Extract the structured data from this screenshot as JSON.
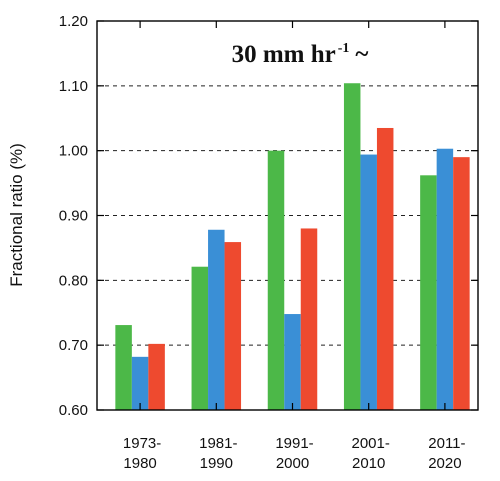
{
  "chart_data": {
    "type": "bar",
    "title": "30 mm hr",
    "title_superscript": "-1",
    "title_suffix": "~",
    "xlabel": "",
    "ylabel": "Fractional ratio (%)",
    "ylim": [
      0.6,
      1.2
    ],
    "yticks": [
      "0.60",
      "0.70",
      "0.80",
      "0.90",
      "1.00",
      "1.10",
      "1.20"
    ],
    "grid": "horizontal dashed",
    "categories": [
      [
        "1973-",
        "1980"
      ],
      [
        "1981-",
        "1990"
      ],
      [
        "1991-",
        "2000"
      ],
      [
        "2001-",
        "2010"
      ],
      [
        "2011-",
        "2020"
      ]
    ],
    "series": [
      {
        "color": "#4cb848",
        "values": [
          0.731,
          0.821,
          1.0,
          1.104,
          0.962
        ]
      },
      {
        "color": "#3a8fd6",
        "values": [
          0.682,
          0.878,
          0.748,
          0.994,
          1.003
        ]
      },
      {
        "color": "#ee4a2f",
        "values": [
          0.702,
          0.859,
          0.88,
          1.035,
          0.99
        ]
      }
    ]
  }
}
